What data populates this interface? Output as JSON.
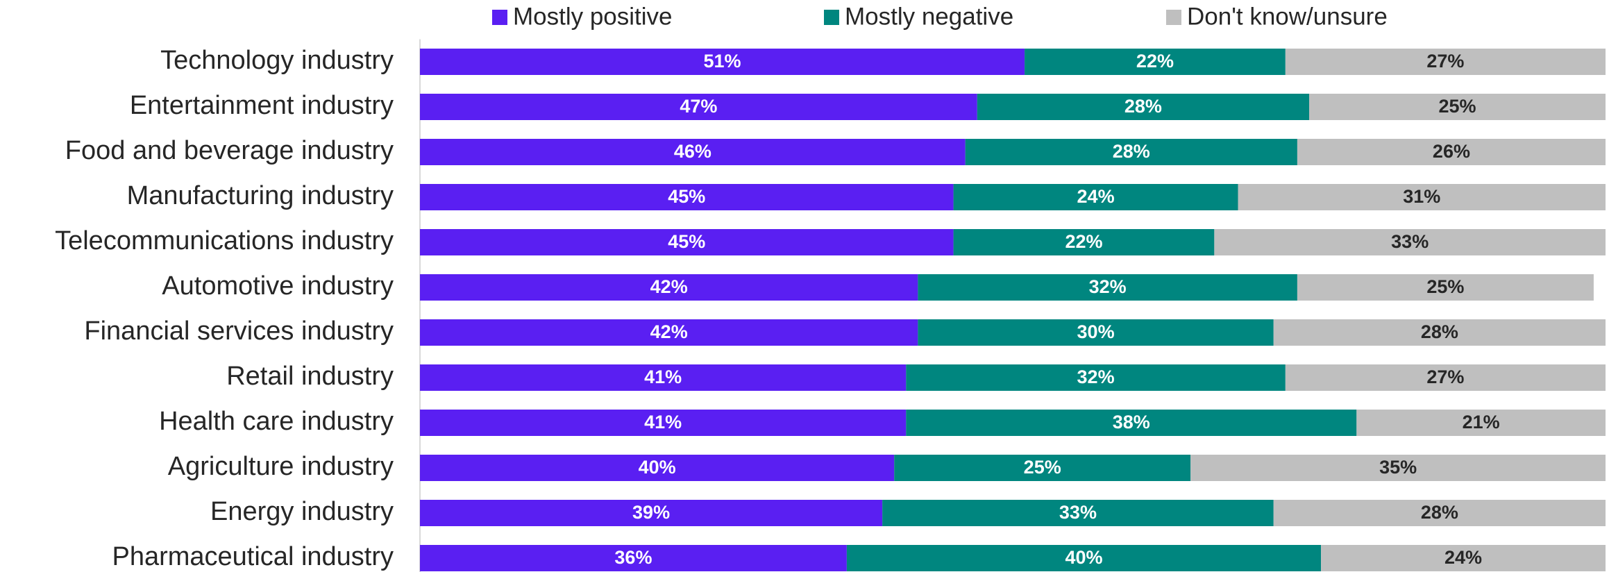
{
  "chart_data": {
    "type": "stacked-bar-horizontal",
    "categories": [
      "Technology industry",
      "Entertainment industry",
      "Food and beverage industry",
      "Manufacturing industry",
      "Telecommunications industry",
      "Automotive industry",
      "Financial services industry",
      "Retail industry",
      "Health care industry",
      "Agriculture industry",
      "Energy industry",
      "Pharmaceutical industry"
    ],
    "series": [
      {
        "name": "Mostly positive",
        "color": "#5a1ff2",
        "label_color": "#ffffff",
        "values": [
          51,
          47,
          46,
          45,
          45,
          42,
          42,
          41,
          41,
          40,
          39,
          36
        ],
        "value_labels": [
          "51%",
          "47%",
          "46%",
          "45%",
          "45%",
          "42%",
          "42%",
          "41%",
          "41%",
          "40%",
          "39%",
          "36%"
        ]
      },
      {
        "name": "Mostly negative",
        "color": "#00867f",
        "label_color": "#ffffff",
        "values": [
          22,
          28,
          28,
          24,
          22,
          32,
          30,
          32,
          38,
          25,
          33,
          40
        ],
        "value_labels": [
          "22%",
          "28%",
          "28%",
          "24%",
          "22%",
          "32%",
          "30%",
          "32%",
          "38%",
          "25%",
          "33%",
          "40%"
        ]
      },
      {
        "name": "Don't know/unsure",
        "color": "#bfbfbf",
        "label_color": "#262626",
        "values": [
          27,
          25,
          26,
          31,
          33,
          25,
          28,
          27,
          21,
          35,
          28,
          24
        ],
        "value_labels": [
          "27%",
          "25%",
          "26%",
          "31%",
          "33%",
          "25%",
          "28%",
          "27%",
          "21%",
          "35%",
          "28%",
          "24%"
        ]
      }
    ],
    "xlim": [
      0,
      100
    ],
    "legend": "top"
  }
}
